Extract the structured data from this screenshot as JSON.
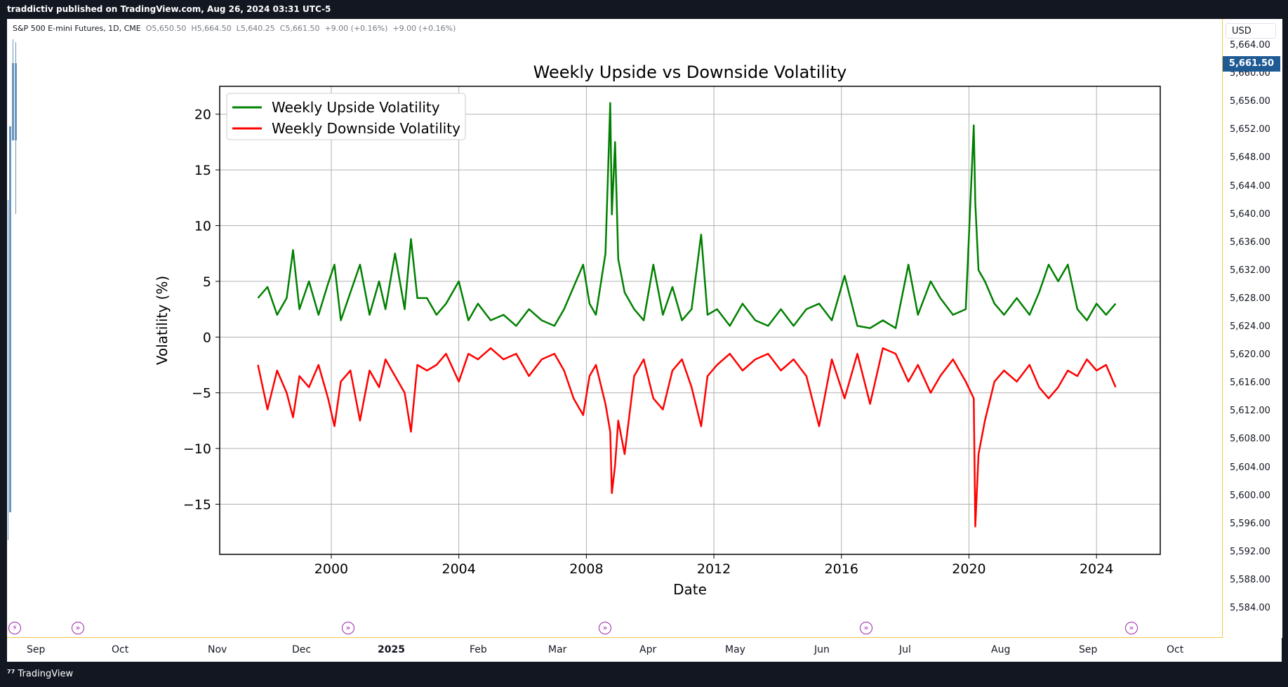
{
  "header": {
    "publish_text": "traddictiv published on TradingView.com, Aug 26, 2024 03:31 UTC-5"
  },
  "symbol_legend": {
    "name": "S&P 500 E-mini Futures, 1D, CME",
    "open_label": "O",
    "open": "5,650.50",
    "high_label": "H",
    "high": "5,664.50",
    "low_label": "L",
    "low": "5,640.25",
    "close_label": "C",
    "close": "5,661.50",
    "change": "+9.00 (+0.16%)",
    "change2": "+9.00 (+0.16%)"
  },
  "price_axis": {
    "currency": "USD",
    "current_price": "5,661.50",
    "labels": [
      "5,664.00",
      "5,660.00",
      "5,656.00",
      "5,652.00",
      "5,648.00",
      "5,644.00",
      "5,640.00",
      "5,636.00",
      "5,632.00",
      "5,628.00",
      "5,624.00",
      "5,620.00",
      "5,616.00",
      "5,612.00",
      "5,608.00",
      "5,604.00",
      "5,600.00",
      "5,596.00",
      "5,592.00",
      "5,588.00",
      "5,584.00"
    ]
  },
  "time_axis": {
    "labels": [
      {
        "text": "Sep",
        "bold": false
      },
      {
        "text": "Oct",
        "bold": false
      },
      {
        "text": "Nov",
        "bold": false
      },
      {
        "text": "Dec",
        "bold": false
      },
      {
        "text": "2025",
        "bold": true
      },
      {
        "text": "Feb",
        "bold": false
      },
      {
        "text": "Mar",
        "bold": false
      },
      {
        "text": "Apr",
        "bold": false
      },
      {
        "text": "May",
        "bold": false
      },
      {
        "text": "Jun",
        "bold": false
      },
      {
        "text": "Jul",
        "bold": false
      },
      {
        "text": "Aug",
        "bold": false
      },
      {
        "text": "Sep",
        "bold": false
      },
      {
        "text": "Oct",
        "bold": false
      }
    ]
  },
  "footer": {
    "brand": "TradingView"
  },
  "colors": {
    "upside": "#008000",
    "downside": "#ff0000",
    "accent_badge": "#1e5a94",
    "event_icon": "#9c27b0"
  },
  "chart_data": {
    "type": "line",
    "title": "Weekly Upside vs Downside Volatility",
    "xlabel": "Date",
    "ylabel": "Volatility (%)",
    "xlim": [
      1996.5,
      2026.0
    ],
    "ylim": [
      -19.5,
      22.5
    ],
    "xticks": [
      2000,
      2004,
      2008,
      2012,
      2016,
      2020,
      2024
    ],
    "yticks": [
      -15,
      -10,
      -5,
      0,
      5,
      10,
      15,
      20
    ],
    "grid": true,
    "legend_position": "top-left",
    "series": [
      {
        "name": "Weekly Upside Volatility",
        "color": "#008000",
        "x": [
          1997.7,
          1998.0,
          1998.3,
          1998.6,
          1998.8,
          1999.0,
          1999.3,
          1999.6,
          1999.9,
          2000.1,
          2000.3,
          2000.6,
          2000.9,
          2001.2,
          2001.5,
          2001.7,
          2002.0,
          2002.3,
          2002.5,
          2002.7,
          2003.0,
          2003.3,
          2003.6,
          2004.0,
          2004.3,
          2004.6,
          2005.0,
          2005.4,
          2005.8,
          2006.2,
          2006.6,
          2007.0,
          2007.3,
          2007.6,
          2007.9,
          2008.1,
          2008.3,
          2008.6,
          2008.75,
          2008.8,
          2008.9,
          2009.0,
          2009.2,
          2009.5,
          2009.8,
          2010.1,
          2010.4,
          2010.7,
          2011.0,
          2011.3,
          2011.6,
          2011.8,
          2012.1,
          2012.5,
          2012.9,
          2013.3,
          2013.7,
          2014.1,
          2014.5,
          2014.9,
          2015.3,
          2015.7,
          2016.1,
          2016.5,
          2016.9,
          2017.3,
          2017.7,
          2018.1,
          2018.4,
          2018.8,
          2019.1,
          2019.5,
          2019.9,
          2020.15,
          2020.2,
          2020.3,
          2020.5,
          2020.8,
          2021.1,
          2021.5,
          2021.9,
          2022.2,
          2022.5,
          2022.8,
          2023.1,
          2023.4,
          2023.7,
          2024.0,
          2024.3,
          2024.6
        ],
        "values": [
          3.5,
          4.5,
          2.0,
          3.5,
          7.8,
          2.5,
          5.0,
          2.0,
          4.8,
          6.5,
          1.5,
          4.0,
          6.5,
          2.0,
          5.0,
          2.5,
          7.5,
          2.5,
          8.8,
          3.5,
          3.5,
          2.0,
          3.0,
          5.0,
          1.5,
          3.0,
          1.5,
          2.0,
          1.0,
          2.5,
          1.5,
          1.0,
          2.5,
          4.5,
          6.5,
          3.0,
          2.0,
          7.5,
          21.0,
          11.0,
          17.5,
          7.0,
          4.0,
          2.5,
          1.5,
          6.5,
          2.0,
          4.5,
          1.5,
          2.5,
          9.2,
          2.0,
          2.5,
          1.0,
          3.0,
          1.5,
          1.0,
          2.5,
          1.0,
          2.5,
          3.0,
          1.5,
          5.5,
          1.0,
          0.8,
          1.5,
          0.8,
          6.5,
          2.0,
          5.0,
          3.5,
          2.0,
          2.5,
          19.0,
          12.0,
          6.0,
          5.0,
          3.0,
          2.0,
          3.5,
          2.0,
          4.0,
          6.5,
          5.0,
          6.5,
          2.5,
          1.5,
          3.0,
          2.0,
          3.0
        ]
      },
      {
        "name": "Weekly Downside Volatility",
        "color": "#ff0000",
        "x": [
          1997.7,
          1998.0,
          1998.3,
          1998.6,
          1998.8,
          1999.0,
          1999.3,
          1999.6,
          1999.9,
          2000.1,
          2000.3,
          2000.6,
          2000.9,
          2001.2,
          2001.5,
          2001.7,
          2002.0,
          2002.3,
          2002.5,
          2002.7,
          2003.0,
          2003.3,
          2003.6,
          2004.0,
          2004.3,
          2004.6,
          2005.0,
          2005.4,
          2005.8,
          2006.2,
          2006.6,
          2007.0,
          2007.3,
          2007.6,
          2007.9,
          2008.1,
          2008.3,
          2008.6,
          2008.75,
          2008.8,
          2008.9,
          2009.0,
          2009.2,
          2009.5,
          2009.8,
          2010.1,
          2010.4,
          2010.7,
          2011.0,
          2011.3,
          2011.6,
          2011.8,
          2012.1,
          2012.5,
          2012.9,
          2013.3,
          2013.7,
          2014.1,
          2014.5,
          2014.9,
          2015.3,
          2015.7,
          2016.1,
          2016.5,
          2016.9,
          2017.3,
          2017.7,
          2018.1,
          2018.4,
          2018.8,
          2019.1,
          2019.5,
          2019.9,
          2020.15,
          2020.2,
          2020.3,
          2020.5,
          2020.8,
          2021.1,
          2021.5,
          2021.9,
          2022.2,
          2022.5,
          2022.8,
          2023.1,
          2023.4,
          2023.7,
          2024.0,
          2024.3,
          2024.6
        ],
        "values": [
          -2.5,
          -6.5,
          -3.0,
          -5.0,
          -7.2,
          -3.5,
          -4.5,
          -2.5,
          -5.5,
          -8.0,
          -4.0,
          -3.0,
          -7.5,
          -3.0,
          -4.5,
          -2.0,
          -3.5,
          -5.0,
          -8.5,
          -2.5,
          -3.0,
          -2.5,
          -1.5,
          -4.0,
          -1.5,
          -2.0,
          -1.0,
          -2.0,
          -1.5,
          -3.5,
          -2.0,
          -1.5,
          -3.0,
          -5.5,
          -7.0,
          -3.5,
          -2.5,
          -6.0,
          -8.5,
          -14.0,
          -11.5,
          -7.5,
          -10.5,
          -3.5,
          -2.0,
          -5.5,
          -6.5,
          -3.0,
          -2.0,
          -4.5,
          -8.0,
          -3.5,
          -2.5,
          -1.5,
          -3.0,
          -2.0,
          -1.5,
          -3.0,
          -2.0,
          -3.5,
          -8.0,
          -2.0,
          -5.5,
          -1.5,
          -6.0,
          -1.0,
          -1.5,
          -4.0,
          -2.5,
          -5.0,
          -3.5,
          -2.0,
          -4.0,
          -5.5,
          -17.0,
          -10.5,
          -7.5,
          -4.0,
          -3.0,
          -4.0,
          -2.5,
          -4.5,
          -5.5,
          -4.5,
          -3.0,
          -3.5,
          -2.0,
          -3.0,
          -2.5,
          -4.5
        ]
      }
    ]
  }
}
